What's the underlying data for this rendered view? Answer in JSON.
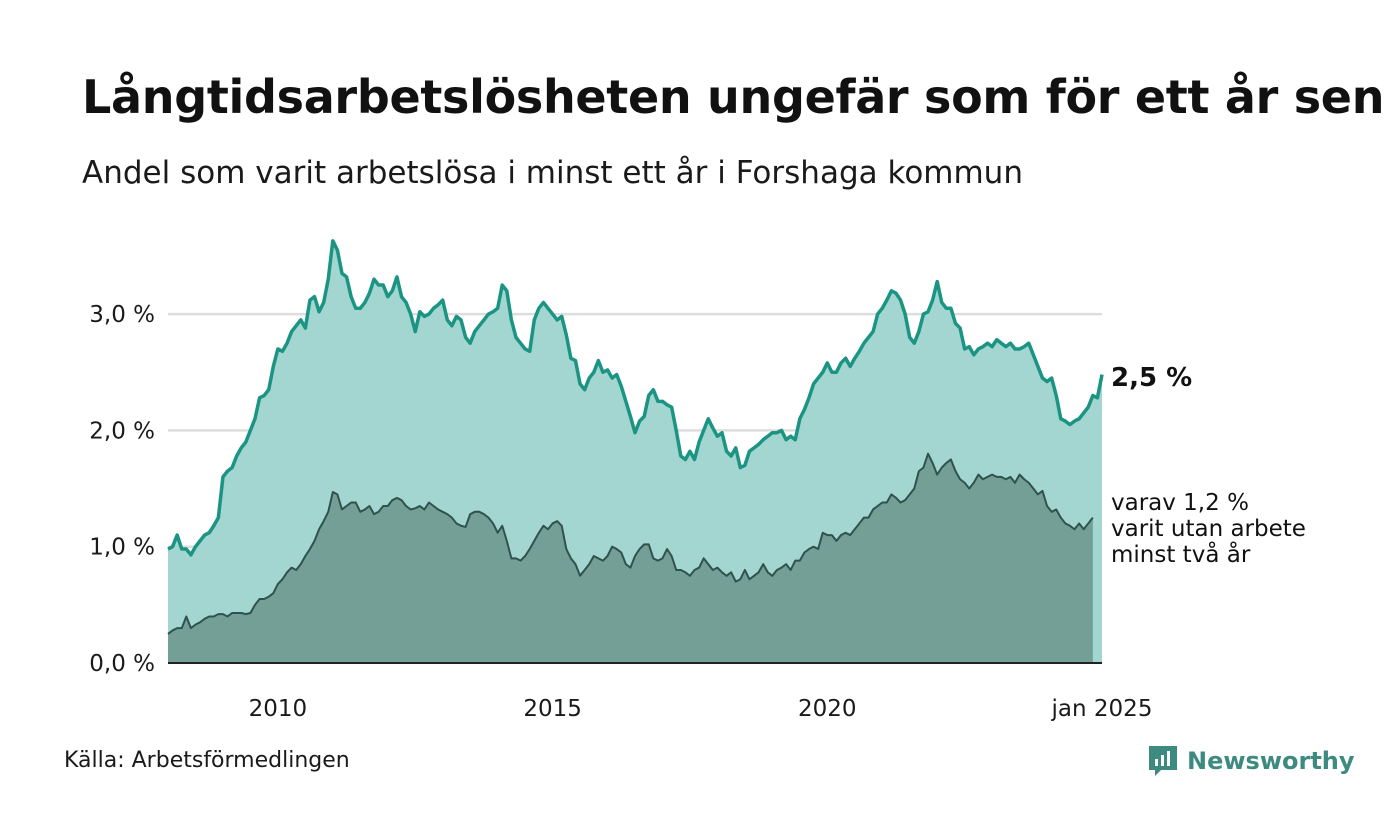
{
  "header": {
    "title": "Långtidsarbetslösheten ungefär som för ett år sen",
    "subtitle": "Andel som varit arbetslösa i minst ett år i Forshaga kommun"
  },
  "footer": {
    "source": "Källa: Arbetsförmedlingen",
    "brand": "Newsworthy"
  },
  "colors": {
    "series1_fill": "#a3d6d0",
    "series1_line": "#1b9483",
    "series2_fill": "#739f97",
    "series2_line": "#30524c",
    "gridline": "#dddddd",
    "axis": "#222222",
    "brand": "#3c8a80"
  },
  "icons": {
    "logo": "newsworthy-bar-chart-icon"
  },
  "chart_data": {
    "type": "area",
    "title": "Långtidsarbetslösheten ungefär som för ett år sen",
    "xlabel": "",
    "ylabel": "",
    "x_start": 2008.0,
    "x_step": 0.0833333,
    "xlim": [
      2008.0,
      2025.0
    ],
    "ylim": [
      0,
      3.8
    ],
    "grid": true,
    "y_ticks": [
      0,
      1,
      2,
      3
    ],
    "y_tick_labels": [
      "0,0 %",
      "1,0 %",
      "2,0 %",
      "3,0 %"
    ],
    "x_ticks": [
      2010,
      2015,
      2020,
      2025
    ],
    "x_tick_labels": [
      "2010",
      "2015",
      "2020",
      "jan 2025"
    ],
    "series": [
      {
        "name": "Arbetslösa minst ett år",
        "end_label": "2,5 %",
        "values": [
          0.98,
          1.0,
          1.1,
          0.98,
          0.98,
          0.93,
          1.0,
          1.05,
          1.1,
          1.12,
          1.18,
          1.25,
          1.6,
          1.65,
          1.68,
          1.78,
          1.85,
          1.9,
          2.0,
          2.1,
          2.28,
          2.3,
          2.35,
          2.55,
          2.7,
          2.68,
          2.75,
          2.85,
          2.9,
          2.95,
          2.88,
          3.12,
          3.15,
          3.02,
          3.1,
          3.3,
          3.63,
          3.55,
          3.35,
          3.32,
          3.15,
          3.05,
          3.05,
          3.1,
          3.18,
          3.3,
          3.25,
          3.25,
          3.15,
          3.2,
          3.32,
          3.15,
          3.1,
          3.0,
          2.85,
          3.02,
          2.98,
          3.0,
          3.05,
          3.08,
          3.12,
          2.95,
          2.9,
          2.98,
          2.95,
          2.8,
          2.75,
          2.85,
          2.9,
          2.95,
          3.0,
          3.02,
          3.05,
          3.25,
          3.2,
          2.95,
          2.8,
          2.75,
          2.7,
          2.68,
          2.95,
          3.05,
          3.1,
          3.05,
          3.0,
          2.95,
          2.98,
          2.82,
          2.62,
          2.6,
          2.4,
          2.35,
          2.45,
          2.5,
          2.6,
          2.5,
          2.52,
          2.45,
          2.48,
          2.38,
          2.25,
          2.12,
          1.98,
          2.08,
          2.12,
          2.3,
          2.35,
          2.25,
          2.25,
          2.22,
          2.2,
          2.0,
          1.78,
          1.75,
          1.82,
          1.75,
          1.9,
          2.0,
          2.1,
          2.02,
          1.95,
          1.98,
          1.82,
          1.78,
          1.85,
          1.68,
          1.7,
          1.82,
          1.85,
          1.88,
          1.92,
          1.95,
          1.98,
          1.98,
          2.0,
          1.92,
          1.95,
          1.92,
          2.1,
          2.18,
          2.28,
          2.4,
          2.45,
          2.5,
          2.58,
          2.5,
          2.5,
          2.58,
          2.62,
          2.55,
          2.62,
          2.68,
          2.75,
          2.8,
          2.85,
          3.0,
          3.05,
          3.12,
          3.2,
          3.18,
          3.12,
          3.0,
          2.8,
          2.75,
          2.85,
          3.0,
          3.02,
          3.12,
          3.28,
          3.1,
          3.05,
          3.05,
          2.92,
          2.88,
          2.7,
          2.72,
          2.65,
          2.7,
          2.72,
          2.75,
          2.72,
          2.78,
          2.75,
          2.72,
          2.75,
          2.7,
          2.7,
          2.72,
          2.75,
          2.65,
          2.55,
          2.45,
          2.42,
          2.45,
          2.3,
          2.1,
          2.08,
          2.05,
          2.08,
          2.1,
          2.15,
          2.2,
          2.3,
          2.28,
          2.48
        ]
      },
      {
        "name": "Varav minst två år",
        "end_label": [
          "varav 1,2 %",
          "varit utan arbete",
          "minst två år"
        ],
        "values": [
          0.25,
          0.28,
          0.3,
          0.3,
          0.4,
          0.3,
          0.33,
          0.35,
          0.38,
          0.4,
          0.4,
          0.42,
          0.42,
          0.4,
          0.43,
          0.43,
          0.43,
          0.42,
          0.43,
          0.5,
          0.55,
          0.55,
          0.57,
          0.6,
          0.68,
          0.72,
          0.78,
          0.82,
          0.8,
          0.85,
          0.92,
          0.98,
          1.05,
          1.15,
          1.22,
          1.3,
          1.47,
          1.45,
          1.32,
          1.35,
          1.38,
          1.38,
          1.3,
          1.32,
          1.35,
          1.28,
          1.3,
          1.35,
          1.35,
          1.4,
          1.42,
          1.4,
          1.35,
          1.32,
          1.33,
          1.35,
          1.32,
          1.38,
          1.35,
          1.32,
          1.3,
          1.28,
          1.25,
          1.2,
          1.18,
          1.17,
          1.28,
          1.3,
          1.3,
          1.28,
          1.25,
          1.2,
          1.12,
          1.18,
          1.05,
          0.9,
          0.9,
          0.88,
          0.92,
          0.98,
          1.05,
          1.12,
          1.18,
          1.15,
          1.2,
          1.22,
          1.18,
          0.98,
          0.9,
          0.85,
          0.75,
          0.8,
          0.85,
          0.92,
          0.9,
          0.88,
          0.92,
          1.0,
          0.98,
          0.95,
          0.85,
          0.82,
          0.92,
          0.98,
          1.02,
          1.02,
          0.9,
          0.88,
          0.9,
          0.98,
          0.92,
          0.8,
          0.8,
          0.78,
          0.75,
          0.8,
          0.82,
          0.9,
          0.85,
          0.8,
          0.82,
          0.78,
          0.75,
          0.78,
          0.7,
          0.72,
          0.8,
          0.72,
          0.75,
          0.78,
          0.85,
          0.78,
          0.75,
          0.8,
          0.82,
          0.85,
          0.8,
          0.88,
          0.88,
          0.95,
          0.98,
          1.0,
          0.98,
          1.12,
          1.1,
          1.1,
          1.05,
          1.1,
          1.12,
          1.1,
          1.15,
          1.2,
          1.25,
          1.25,
          1.32,
          1.35,
          1.38,
          1.38,
          1.45,
          1.42,
          1.38,
          1.4,
          1.45,
          1.5,
          1.65,
          1.68,
          1.8,
          1.72,
          1.62,
          1.68,
          1.72,
          1.75,
          1.65,
          1.58,
          1.55,
          1.5,
          1.55,
          1.62,
          1.58,
          1.6,
          1.62,
          1.6,
          1.6,
          1.58,
          1.6,
          1.55,
          1.62,
          1.58,
          1.55,
          1.5,
          1.45,
          1.48,
          1.35,
          1.3,
          1.32,
          1.25,
          1.2,
          1.18,
          1.15,
          1.2,
          1.15,
          1.2,
          1.25
        ]
      }
    ]
  }
}
